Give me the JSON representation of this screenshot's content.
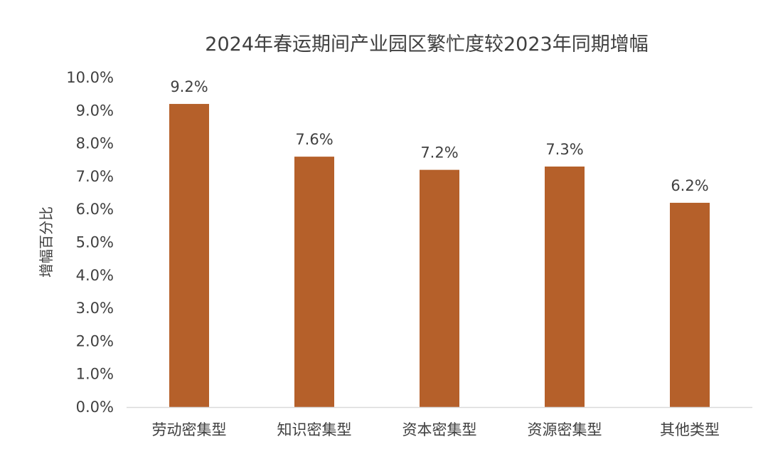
{
  "chart_data": {
    "type": "bar",
    "title": "2024年春运期间产业园区繁忙度较2023年同期增幅",
    "ylabel": "增幅百分比",
    "xlabel": "",
    "categories": [
      "劳动密集型",
      "知识密集型",
      "资本密集型",
      "资源密集型",
      "其他类型"
    ],
    "values": [
      9.2,
      7.6,
      7.2,
      7.3,
      6.2
    ],
    "data_labels": [
      "9.2%",
      "7.6%",
      "7.2%",
      "7.3%",
      "6.2%"
    ],
    "ylim": [
      0,
      10
    ],
    "yticks": [
      0,
      1,
      2,
      3,
      4,
      5,
      6,
      7,
      8,
      9,
      10
    ],
    "ytick_labels": [
      "0.0%",
      "1.0%",
      "2.0%",
      "3.0%",
      "4.0%",
      "5.0%",
      "6.0%",
      "7.0%",
      "8.0%",
      "9.0%",
      "10.0%"
    ],
    "grid": false,
    "legend": "none",
    "bar_color": "#B5602A",
    "axis_color": "#D9D9D9"
  }
}
